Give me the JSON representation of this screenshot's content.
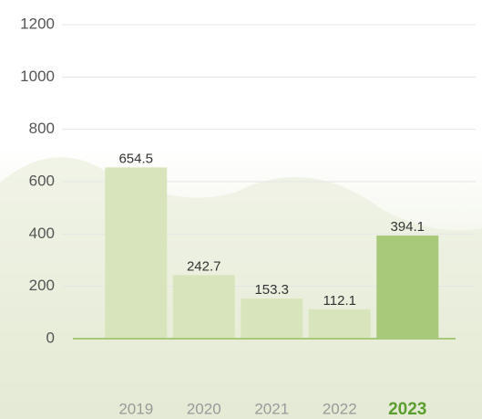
{
  "chart_data": {
    "type": "bar",
    "categories": [
      "2019",
      "2020",
      "2021",
      "2022",
      "2023"
    ],
    "values": [
      654.5,
      242.7,
      153.3,
      112.1,
      394.1
    ],
    "colors": [
      "#d8e5bc",
      "#d8e5bc",
      "#d8e5bc",
      "#d8e5bc",
      "#a9c97a"
    ],
    "label_colors": [
      "#9a9a9a",
      "#9a9a9a",
      "#9a9a9a",
      "#9a9a9a",
      "#5a9e2e"
    ],
    "ylim": [
      0,
      1200
    ],
    "yticks": [
      0,
      200,
      400,
      600,
      800,
      1000,
      1200
    ],
    "grid": true
  }
}
